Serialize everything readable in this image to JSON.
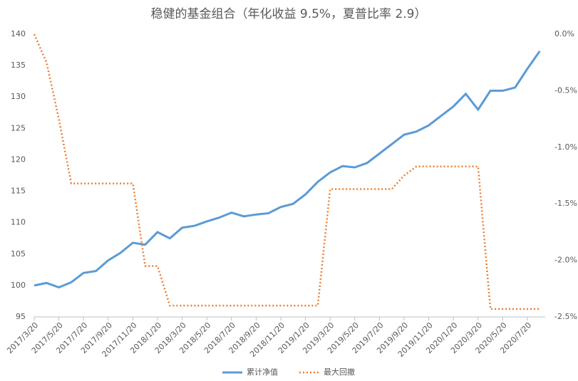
{
  "chart_data": {
    "type": "line",
    "title": "稳健的基金组合（年化收益 9.5%，夏普比率 2.9）",
    "categories": [
      "2017/3/20",
      null,
      "2017/5/20",
      null,
      "2017/7/20",
      null,
      "2017/9/20",
      null,
      "2017/11/20",
      null,
      "2018/1/20",
      null,
      "2018/3/20",
      null,
      "2018/5/20",
      null,
      "2018/7/20",
      null,
      "2018/9/20",
      null,
      "2018/11/20",
      null,
      "2019/1/20",
      null,
      "2019/3/20",
      null,
      "2019/5/20",
      null,
      "2019/7/20",
      null,
      "2019/9/20",
      null,
      "2019/11/20",
      null,
      "2020/1/20",
      null,
      "2020/3/20",
      null,
      "2020/5/20",
      null,
      "2020/7/20",
      null
    ],
    "series": [
      {
        "name": "累计净值",
        "color": "#5b9bd5",
        "values": [
          100,
          100.4,
          99.7,
          100.5,
          102,
          102.3,
          104,
          105.2,
          106.8,
          106.5,
          108.5,
          107.5,
          109.2,
          109.5,
          110.2,
          110.8,
          111.6,
          111,
          111.3,
          111.5,
          112.5,
          113,
          114.5,
          116.5,
          118,
          119,
          118.8,
          119.5,
          121,
          122.5,
          124,
          124.5,
          125.5,
          127,
          128.5,
          130.5,
          128,
          131,
          131,
          131.5,
          134.5,
          137.3
        ]
      },
      {
        "name": "最大回撤",
        "color": "#ed7d31",
        "axis": "y2",
        "values": [
          0,
          -0.25,
          -0.75,
          -1.32,
          -1.32,
          -1.32,
          -1.32,
          -1.32,
          -1.32,
          -2.05,
          -2.05,
          -2.4,
          -2.4,
          -2.4,
          -2.4,
          -2.4,
          -2.4,
          -2.4,
          -2.4,
          -2.4,
          -2.4,
          -2.4,
          -2.4,
          -2.4,
          -1.37,
          -1.37,
          -1.37,
          -1.37,
          -1.37,
          -1.37,
          -1.25,
          -1.17,
          -1.17,
          -1.17,
          -1.17,
          -1.17,
          -1.17,
          -2.43,
          -2.43,
          -2.43,
          -2.43,
          -2.43
        ]
      }
    ],
    "ylim": [
      95,
      140
    ],
    "yticks": [
      95,
      100,
      105,
      110,
      115,
      120,
      125,
      130,
      135,
      140
    ],
    "y2lim": [
      -2.5,
      0
    ],
    "y2ticks": [
      {
        "value": -2.5,
        "label": "-2.5%"
      },
      {
        "value": -2,
        "label": "-2.0%"
      },
      {
        "value": -1.5,
        "label": "-1.5%"
      },
      {
        "value": -1,
        "label": "-1.0%"
      },
      {
        "value": -0.5,
        "label": "-0.5%"
      },
      {
        "value": 0,
        "label": "0.0%"
      }
    ],
    "legend": "bottom"
  }
}
